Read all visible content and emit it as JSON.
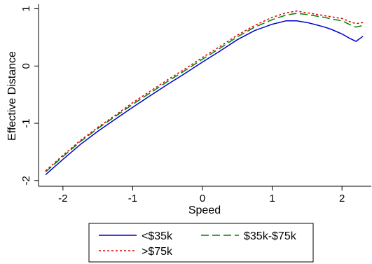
{
  "chart_data": {
    "type": "line",
    "xlabel": "Speed",
    "ylabel": "Effective Distance",
    "xlim": [
      -2.35,
      2.42
    ],
    "ylim": [
      -2.1,
      1.08
    ],
    "xticks": [
      -2,
      -1,
      0,
      1,
      2
    ],
    "xtick_labels": [
      "-2",
      "-1",
      "0",
      "1",
      "2"
    ],
    "yticks": [
      -2,
      -1,
      0,
      1
    ],
    "ytick_labels": [
      "-2",
      "-1",
      "0",
      "1"
    ],
    "grid": false,
    "legend_position": "bottom",
    "series": [
      {
        "name": "<$35k",
        "color": "#0000cc",
        "dash": "solid",
        "x": [
          -2.25,
          -2.0,
          -1.75,
          -1.5,
          -1.25,
          -1.0,
          -0.75,
          -0.5,
          -0.25,
          0.0,
          0.25,
          0.5,
          0.75,
          1.0,
          1.2,
          1.35,
          1.5,
          1.6,
          1.75,
          1.85,
          2.0,
          2.1,
          2.2,
          2.3
        ],
        "y": [
          -1.9,
          -1.63,
          -1.37,
          -1.14,
          -0.93,
          -0.72,
          -0.52,
          -0.32,
          -0.13,
          0.07,
          0.26,
          0.46,
          0.62,
          0.73,
          0.79,
          0.79,
          0.76,
          0.73,
          0.68,
          0.64,
          0.56,
          0.49,
          0.43,
          0.52
        ]
      },
      {
        "name": "$35k-$75k",
        "color": "#008000",
        "dash": "long-dash",
        "x": [
          -2.25,
          -2.0,
          -1.75,
          -1.5,
          -1.25,
          -1.0,
          -0.75,
          -0.5,
          -0.25,
          0.0,
          0.25,
          0.5,
          0.75,
          1.0,
          1.2,
          1.35,
          1.5,
          1.6,
          1.75,
          1.85,
          2.0,
          2.1,
          2.2,
          2.3
        ],
        "y": [
          -1.85,
          -1.58,
          -1.32,
          -1.09,
          -0.88,
          -0.67,
          -0.47,
          -0.27,
          -0.08,
          0.12,
          0.31,
          0.51,
          0.68,
          0.81,
          0.89,
          0.92,
          0.9,
          0.88,
          0.85,
          0.82,
          0.79,
          0.73,
          0.68,
          0.71
        ]
      },
      {
        "name": ">$75k",
        "color": "#dd0000",
        "dash": "short-dash",
        "x": [
          -2.25,
          -2.0,
          -1.75,
          -1.5,
          -1.25,
          -1.0,
          -0.75,
          -0.5,
          -0.25,
          0.0,
          0.25,
          0.5,
          0.75,
          1.0,
          1.2,
          1.35,
          1.5,
          1.6,
          1.75,
          1.85,
          2.0,
          2.1,
          2.2,
          2.3
        ],
        "y": [
          -1.83,
          -1.56,
          -1.3,
          -1.07,
          -0.86,
          -0.64,
          -0.44,
          -0.24,
          -0.05,
          0.15,
          0.34,
          0.54,
          0.71,
          0.85,
          0.93,
          0.96,
          0.93,
          0.91,
          0.88,
          0.86,
          0.83,
          0.78,
          0.74,
          0.76
        ]
      }
    ]
  }
}
